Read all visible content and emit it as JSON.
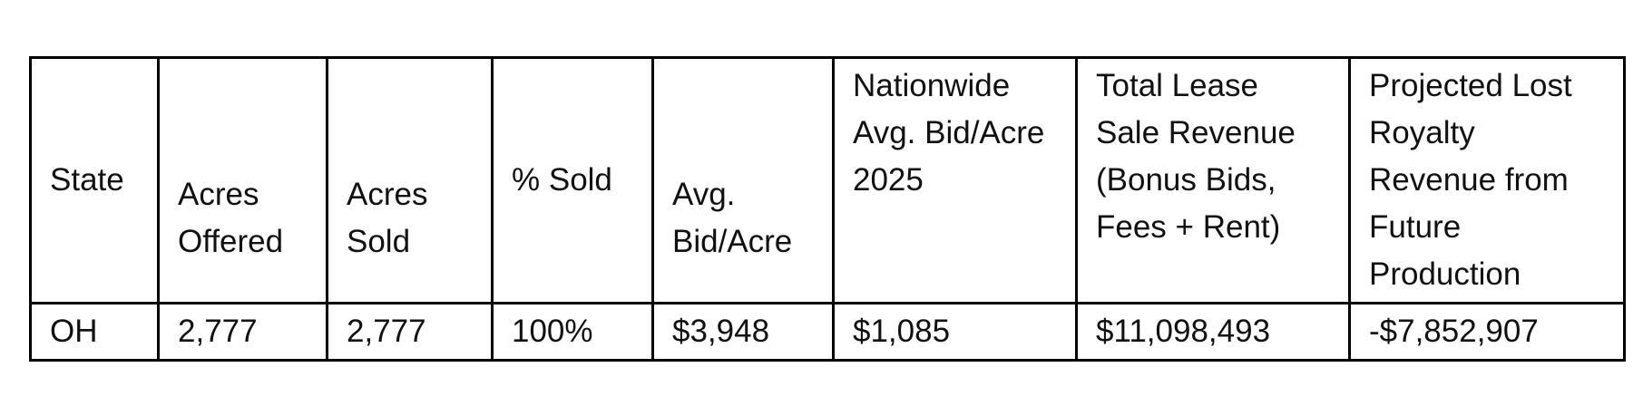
{
  "table": {
    "header": [
      "State",
      "Acres Offered",
      "Acres Sold",
      "% Sold",
      "Avg. Bid/Acre",
      "Nationwide Avg. Bid/Acre 2025",
      "Total Lease Sale Revenue (Bonus Bids, Fees + Rent)",
      "Projected Lost Royalty Revenue from Future Production"
    ],
    "rows": [
      [
        "OH",
        "2,777",
        "2,777",
        "100%",
        "$3,948",
        "$1,085",
        "$11,098,493",
        "-$7,852,907"
      ]
    ]
  }
}
